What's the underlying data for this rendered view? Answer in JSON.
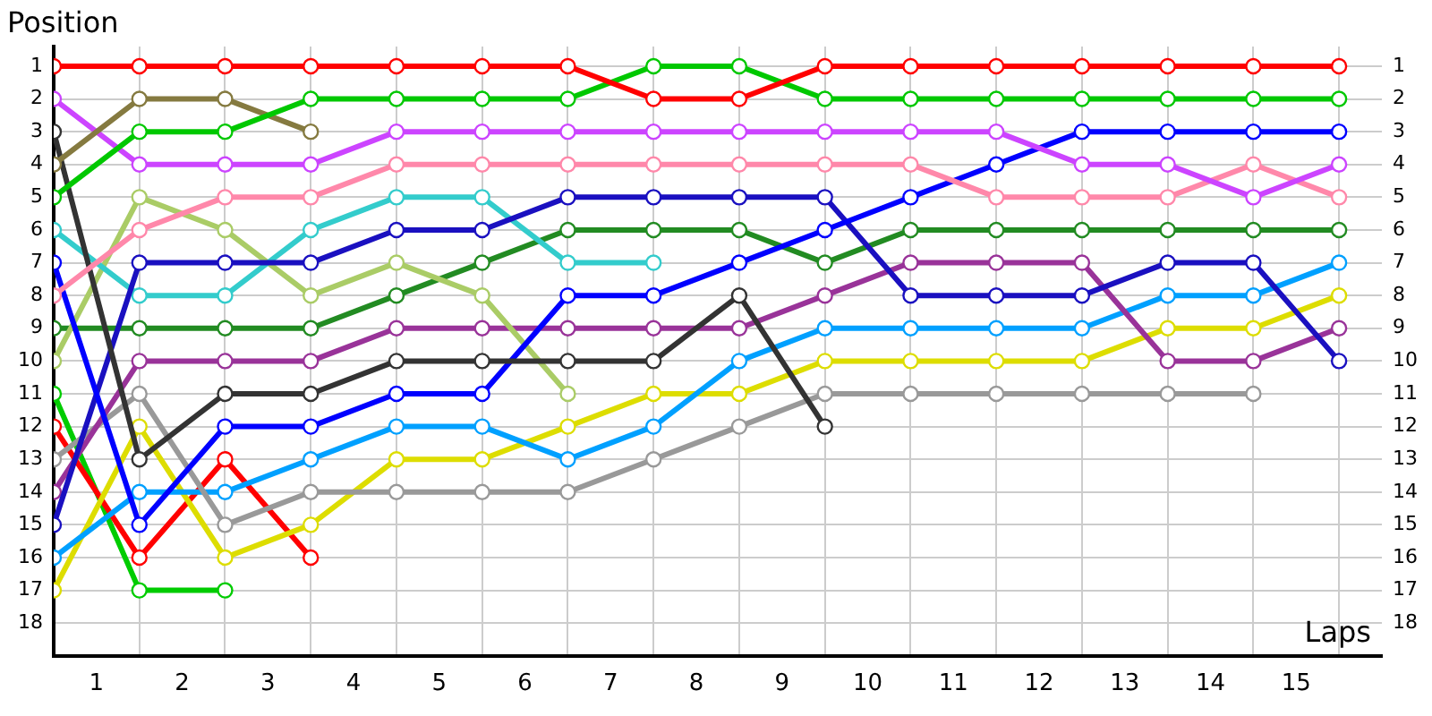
{
  "chart_data": {
    "type": "line",
    "xlabel": "Laps",
    "ylabel": "Position",
    "x": [
      0,
      1,
      2,
      3,
      4,
      5,
      6,
      7,
      8,
      9,
      10,
      11,
      12,
      13,
      14,
      15
    ],
    "xlim": [
      0,
      15.5
    ],
    "xticks": [
      {
        "value": 0,
        "label": null
      },
      {
        "value": 0.5,
        "label": "1"
      },
      {
        "value": 1,
        "label": null
      },
      {
        "value": 1.5,
        "label": "2"
      },
      {
        "value": 2,
        "label": null
      },
      {
        "value": 2.5,
        "label": "3"
      },
      {
        "value": 3,
        "label": null
      },
      {
        "value": 3.5,
        "label": "4"
      },
      {
        "value": 4,
        "label": null
      },
      {
        "value": 4.5,
        "label": "5"
      },
      {
        "value": 5,
        "label": null
      },
      {
        "value": 5.5,
        "label": "6"
      },
      {
        "value": 6,
        "label": null
      },
      {
        "value": 6.5,
        "label": "7"
      },
      {
        "value": 7,
        "label": null
      },
      {
        "value": 7.5,
        "label": "8"
      },
      {
        "value": 8,
        "label": null
      },
      {
        "value": 8.5,
        "label": "9"
      },
      {
        "value": 9,
        "label": null
      },
      {
        "value": 9.5,
        "label": "10"
      },
      {
        "value": 10,
        "label": null
      },
      {
        "value": 10.5,
        "label": "11"
      },
      {
        "value": 11,
        "label": null
      },
      {
        "value": 11.5,
        "label": "12"
      },
      {
        "value": 12,
        "label": null
      },
      {
        "value": 12.5,
        "label": "13"
      },
      {
        "value": 13,
        "label": null
      },
      {
        "value": 13.5,
        "label": "14"
      },
      {
        "value": 14,
        "label": null
      },
      {
        "value": 14.5,
        "label": "15"
      },
      {
        "value": 15,
        "label": null
      }
    ],
    "ylim": [
      19,
      0.4
    ],
    "yticks": [
      1,
      2,
      3,
      4,
      5,
      6,
      7,
      8,
      9,
      10,
      11,
      12,
      13,
      14,
      15,
      16,
      17,
      18
    ],
    "y2lim": [
      19,
      0.4
    ],
    "y2ticks": [
      1,
      2,
      3,
      4,
      5,
      6,
      7,
      8,
      9,
      10,
      11,
      12,
      13,
      14,
      15,
      16,
      17,
      18
    ],
    "grid": true,
    "legend": false,
    "marker": "circle",
    "line_style": "solid",
    "series": [
      {
        "color": "#ff0000",
        "values": [
          1,
          1,
          1,
          1,
          1,
          1,
          1,
          2,
          2,
          1,
          1,
          1,
          1,
          1,
          1,
          1
        ]
      },
      {
        "color": "#00c800",
        "values": [
          5,
          3,
          3,
          2,
          2,
          2,
          2,
          1,
          1,
          2,
          2,
          2,
          2,
          2,
          2,
          2
        ]
      },
      {
        "color": "#857a40",
        "values": [
          4,
          2,
          2,
          3,
          null,
          null,
          null,
          null,
          null,
          null,
          null,
          null,
          null,
          null,
          null,
          null
        ]
      },
      {
        "color": "#cc44ff",
        "values": [
          2,
          4,
          4,
          4,
          3,
          3,
          3,
          3,
          3,
          3,
          3,
          3,
          4,
          4,
          5,
          4
        ]
      },
      {
        "color": "#ff88aa",
        "values": [
          8,
          6,
          5,
          5,
          4,
          4,
          4,
          4,
          4,
          4,
          4,
          5,
          5,
          5,
          4,
          5
        ]
      },
      {
        "color": "#333333",
        "values": [
          3,
          13,
          11,
          11,
          10,
          10,
          10,
          10,
          8,
          12,
          null,
          null,
          null,
          null,
          null,
          null
        ]
      },
      {
        "color": "#0000ff",
        "values": [
          7,
          15,
          12,
          12,
          11,
          11,
          8,
          8,
          7,
          6,
          5,
          4,
          3,
          3,
          3,
          3
        ]
      },
      {
        "color": "#1a10c0",
        "values": [
          15,
          7,
          7,
          7,
          6,
          6,
          5,
          5,
          5,
          5,
          8,
          8,
          8,
          7,
          7,
          10
        ]
      },
      {
        "color": "#33cccc",
        "values": [
          6,
          8,
          8,
          6,
          5,
          5,
          7,
          7,
          null,
          null,
          null,
          null,
          null,
          null,
          null,
          null
        ]
      },
      {
        "color": "#aacc66",
        "values": [
          10,
          5,
          6,
          8,
          7,
          8,
          11,
          null,
          null,
          null,
          null,
          null,
          null,
          null,
          null,
          null
        ]
      },
      {
        "color": "#228b22",
        "values": [
          9,
          9,
          9,
          9,
          8,
          7,
          6,
          6,
          6,
          7,
          6,
          6,
          6,
          6,
          6,
          6
        ]
      },
      {
        "color": "#993399",
        "values": [
          14,
          10,
          10,
          10,
          9,
          9,
          9,
          9,
          9,
          8,
          7,
          7,
          7,
          10,
          10,
          9
        ]
      },
      {
        "color": "#999999",
        "values": [
          13,
          11,
          15,
          14,
          14,
          14,
          14,
          13,
          12,
          11,
          11,
          11,
          11,
          11,
          11,
          null
        ]
      },
      {
        "color": "#00a0ff",
        "values": [
          16,
          14,
          14,
          13,
          12,
          12,
          13,
          12,
          10,
          9,
          9,
          9,
          9,
          8,
          8,
          7
        ]
      },
      {
        "color": "#dddd00",
        "values": [
          17,
          12,
          16,
          15,
          13,
          13,
          12,
          11,
          11,
          10,
          10,
          10,
          10,
          9,
          9,
          8
        ]
      },
      {
        "color": "#ff0000",
        "values": [
          12,
          16,
          13,
          16,
          null,
          null,
          null,
          null,
          null,
          null,
          null,
          null,
          null,
          null,
          null,
          null
        ]
      },
      {
        "color": "#00cc00",
        "values": [
          11,
          17,
          17,
          null,
          null,
          null,
          null,
          null,
          null,
          null,
          null,
          null,
          null,
          null,
          null,
          null
        ]
      }
    ]
  }
}
